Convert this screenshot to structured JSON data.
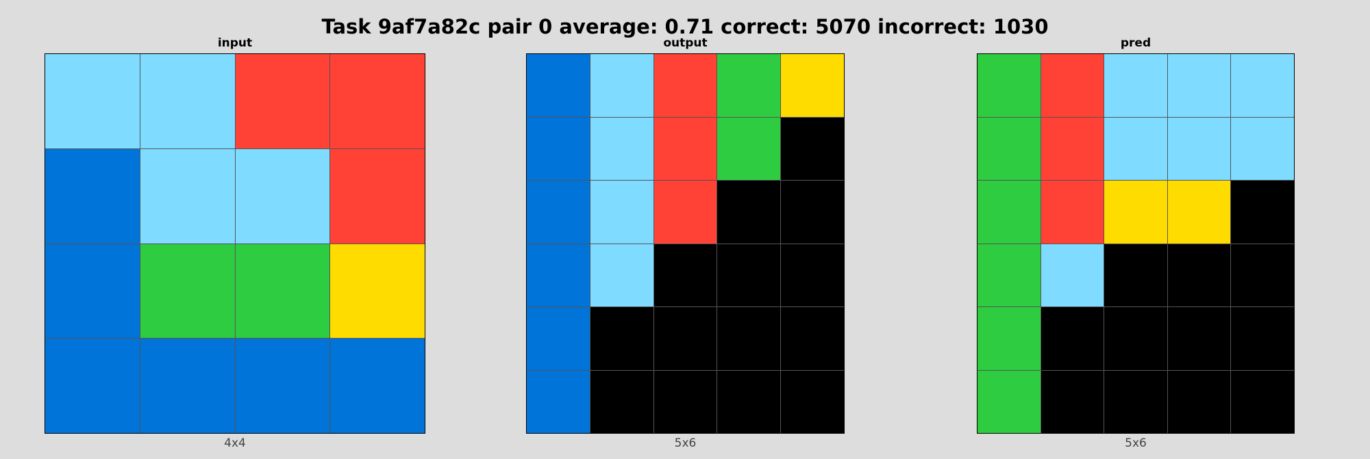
{
  "title": "Task 9af7a82c pair 0 average: 0.71 correct: 5070 incorrect: 1030",
  "palette": {
    "0": "#000000",
    "1": "#0074D9",
    "2": "#FF4136",
    "3": "#2ECC40",
    "4": "#FFDC00",
    "8": "#7FDBFF"
  },
  "panels": [
    {
      "key": "input",
      "title": "input",
      "size_label": "4x4",
      "grid": [
        [
          8,
          8,
          2,
          2
        ],
        [
          1,
          8,
          8,
          2
        ],
        [
          1,
          3,
          3,
          4
        ],
        [
          1,
          1,
          1,
          1
        ]
      ]
    },
    {
      "key": "output",
      "title": "output",
      "size_label": "5x6",
      "grid": [
        [
          1,
          8,
          2,
          3,
          4
        ],
        [
          1,
          8,
          2,
          3,
          0
        ],
        [
          1,
          8,
          2,
          0,
          0
        ],
        [
          1,
          8,
          0,
          0,
          0
        ],
        [
          1,
          0,
          0,
          0,
          0
        ],
        [
          1,
          0,
          0,
          0,
          0
        ]
      ]
    },
    {
      "key": "pred",
      "title": "pred",
      "size_label": "5x6",
      "grid": [
        [
          3,
          2,
          8,
          8,
          8
        ],
        [
          3,
          2,
          8,
          8,
          8
        ],
        [
          3,
          2,
          4,
          4,
          0
        ],
        [
          3,
          8,
          0,
          0,
          0
        ],
        [
          3,
          0,
          0,
          0,
          0
        ],
        [
          3,
          0,
          0,
          0,
          0
        ]
      ]
    }
  ]
}
